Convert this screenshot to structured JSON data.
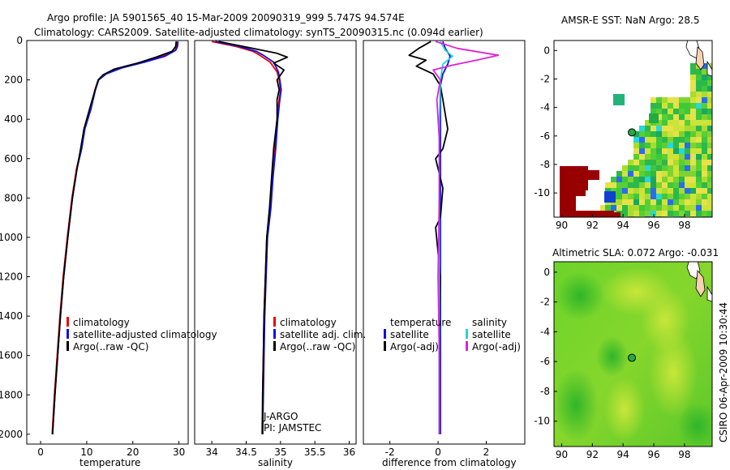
{
  "titles": {
    "line1": "Argo profile: JA 5901565_40 15-Mar-2009 20090319_999 5.747S 94.574E",
    "line2": "Climatology: CARS2009. Satellite-adjusted climatology: synTS_20090315.nc (0.094d earlier)"
  },
  "credit": "CSIRO 06-Apr-2009 10:30:44",
  "colors": {
    "climatology": "#ee0000",
    "satellite": "#1010e6",
    "argo": "#000000",
    "sat_salinity": "#22d5d5",
    "argo_salinity": "#dd22dd",
    "land": "#f6d2b2",
    "mask": "#980000",
    "float_marker": "#22aa44"
  },
  "chart_data": [
    {
      "type": "line",
      "name": "temperature",
      "xlabel": "temperature",
      "ylabel": "",
      "xlim": [
        -3,
        32
      ],
      "ylim": [
        2050,
        0
      ],
      "xticks": [
        0,
        10,
        20,
        30
      ],
      "yticks": [
        0,
        200,
        400,
        600,
        800,
        1000,
        1200,
        1400,
        1600,
        1800,
        2000
      ],
      "legend": [
        "climatology",
        "satellite-adjusted climatology",
        "Argo(..raw -QC)"
      ],
      "series": [
        {
          "name": "climatology",
          "color": "#ee0000",
          "points": [
            [
              29.6,
              5
            ],
            [
              29.5,
              30
            ],
            [
              29.2,
              50
            ],
            [
              26.5,
              80
            ],
            [
              22,
              110
            ],
            [
              17,
              140
            ],
            [
              14,
              170
            ],
            [
              12.5,
              200
            ],
            [
              11.8,
              250
            ],
            [
              10.8,
              350
            ],
            [
              9.5,
              450
            ],
            [
              8.8,
              550
            ],
            [
              7.8,
              650
            ],
            [
              6.8,
              800
            ],
            [
              5.8,
              1000
            ],
            [
              4.9,
              1200
            ],
            [
              4.2,
              1400
            ],
            [
              3.6,
              1600
            ],
            [
              3,
              1800
            ],
            [
              2.5,
              2000
            ]
          ]
        },
        {
          "name": "satellite",
          "color": "#1010e6",
          "points": [
            [
              29.8,
              5
            ],
            [
              29.7,
              30
            ],
            [
              29.3,
              50
            ],
            [
              27,
              80
            ],
            [
              22.5,
              110
            ],
            [
              17.5,
              140
            ],
            [
              14.2,
              170
            ],
            [
              12.6,
              200
            ],
            [
              11.9,
              250
            ],
            [
              10.9,
              350
            ],
            [
              9.6,
              450
            ],
            [
              8.9,
              550
            ],
            [
              7.9,
              650
            ],
            [
              6.9,
              800
            ],
            [
              5.9,
              1000
            ],
            [
              5,
              1200
            ],
            [
              4.3,
              1400
            ],
            [
              3.7,
              1600
            ],
            [
              3.1,
              1800
            ],
            [
              2.6,
              2000
            ]
          ]
        },
        {
          "name": "Argo(..raw -QC)",
          "color": "#000000",
          "points": [
            [
              29.4,
              5
            ],
            [
              29.3,
              30
            ],
            [
              28.5,
              55
            ],
            [
              25,
              85
            ],
            [
              21,
              115
            ],
            [
              16,
              145
            ],
            [
              13.5,
              175
            ],
            [
              12.5,
              200
            ],
            [
              11.7,
              260
            ],
            [
              10.6,
              350
            ],
            [
              9.4,
              450
            ],
            [
              8.6,
              560
            ],
            [
              7.9,
              650
            ],
            [
              6.9,
              800
            ],
            [
              5.9,
              1000
            ],
            [
              5,
              1200
            ],
            [
              4.3,
              1400
            ],
            [
              3.7,
              1600
            ],
            [
              3.1,
              1800
            ],
            [
              2.6,
              2000
            ]
          ]
        }
      ]
    },
    {
      "type": "line",
      "name": "salinity",
      "xlabel": "salinity",
      "xlim": [
        33.75,
        36.1
      ],
      "ylim": [
        2050,
        0
      ],
      "xticks": [
        34,
        34.5,
        35,
        35.5,
        36
      ],
      "legend": [
        "climatology",
        "satellite adj. clim.",
        "Argo(..raw -QC)"
      ],
      "annotation": [
        "J-ARGO",
        "PI: JAMSTEC"
      ],
      "series": [
        {
          "name": "climatology",
          "color": "#ee0000",
          "points": [
            [
              34.0,
              5
            ],
            [
              34.35,
              30
            ],
            [
              34.6,
              55
            ],
            [
              34.7,
              75
            ],
            [
              34.85,
              110
            ],
            [
              34.95,
              160
            ],
            [
              34.98,
              200
            ],
            [
              35.0,
              250
            ],
            [
              34.98,
              300
            ],
            [
              34.95,
              400
            ],
            [
              34.92,
              550
            ],
            [
              34.88,
              700
            ],
            [
              34.85,
              850
            ],
            [
              34.8,
              1000
            ],
            [
              34.78,
              1200
            ],
            [
              34.76,
              1400
            ],
            [
              34.75,
              1600
            ],
            [
              34.74,
              1800
            ],
            [
              34.73,
              2000
            ]
          ]
        },
        {
          "name": "satellite",
          "color": "#1010e6",
          "points": [
            [
              34.05,
              5
            ],
            [
              34.4,
              30
            ],
            [
              34.65,
              55
            ],
            [
              34.75,
              75
            ],
            [
              34.9,
              110
            ],
            [
              34.97,
              160
            ],
            [
              34.99,
              200
            ],
            [
              35.01,
              250
            ],
            [
              34.99,
              300
            ],
            [
              34.96,
              400
            ],
            [
              34.93,
              550
            ],
            [
              34.89,
              700
            ],
            [
              34.86,
              850
            ],
            [
              34.81,
              1000
            ],
            [
              34.79,
              1200
            ],
            [
              34.77,
              1400
            ],
            [
              34.76,
              1600
            ],
            [
              34.75,
              1800
            ],
            [
              34.74,
              2000
            ]
          ]
        },
        {
          "name": "Argo(..raw -QC)",
          "color": "#000000",
          "points": [
            [
              34.1,
              5
            ],
            [
              34.6,
              40
            ],
            [
              34.95,
              65
            ],
            [
              35.1,
              85
            ],
            [
              34.9,
              115
            ],
            [
              35.05,
              150
            ],
            [
              34.95,
              200
            ],
            [
              34.98,
              250
            ],
            [
              34.95,
              300
            ],
            [
              34.95,
              400
            ],
            [
              34.9,
              550
            ],
            [
              34.87,
              700
            ],
            [
              34.84,
              850
            ],
            [
              34.8,
              1000
            ],
            [
              34.78,
              1200
            ],
            [
              34.76,
              1400
            ],
            [
              34.75,
              1600
            ],
            [
              34.74,
              1800
            ],
            [
              34.74,
              2000
            ]
          ]
        }
      ]
    },
    {
      "type": "line",
      "name": "difference",
      "xlabel": "difference from climatology",
      "xlim": [
        -3.1,
        3.6
      ],
      "ylim": [
        2050,
        0
      ],
      "xticks": [
        -2,
        0,
        2
      ],
      "legend": [
        "temperature",
        "satellite",
        "Argo(-adj)",
        "salinity",
        "satellite",
        "Argo(-adj)"
      ],
      "series": [
        {
          "name": "temperature satellite",
          "color": "#1010e6",
          "points": [
            [
              0.2,
              5
            ],
            [
              0.3,
              40
            ],
            [
              0.5,
              80
            ],
            [
              0.4,
              120
            ],
            [
              0.2,
              170
            ],
            [
              0.1,
              230
            ],
            [
              0.1,
              300
            ],
            [
              0.1,
              500
            ],
            [
              0.1,
              800
            ],
            [
              0.1,
              1200
            ],
            [
              0.1,
              1600
            ],
            [
              0.1,
              2000
            ]
          ]
        },
        {
          "name": "temperature Argo(-adj)",
          "color": "#000000",
          "points": [
            [
              -0.3,
              5
            ],
            [
              -0.8,
              40
            ],
            [
              -1.2,
              75
            ],
            [
              -0.5,
              100
            ],
            [
              -0.9,
              130
            ],
            [
              -0.2,
              170
            ],
            [
              0.1,
              230
            ],
            [
              0.2,
              300
            ],
            [
              0.4,
              450
            ],
            [
              0.2,
              550
            ],
            [
              -0.1,
              600
            ],
            [
              0.2,
              750
            ],
            [
              0.1,
              900
            ],
            [
              -0.1,
              950
            ],
            [
              0.1,
              1200
            ],
            [
              0.05,
              1600
            ],
            [
              0.05,
              2000
            ]
          ]
        },
        {
          "name": "salinity satellite",
          "color": "#22d5d5",
          "points": [
            [
              0.1,
              5
            ],
            [
              0.3,
              50
            ],
            [
              0.6,
              80
            ],
            [
              0.2,
              120
            ],
            [
              0.1,
              200
            ],
            [
              0.05,
              400
            ],
            [
              0.05,
              800
            ],
            [
              0.05,
              1200
            ],
            [
              0.05,
              1600
            ],
            [
              0.05,
              2000
            ]
          ]
        },
        {
          "name": "salinity Argo(-adj)",
          "color": "#dd22dd",
          "points": [
            [
              -0.1,
              5
            ],
            [
              0.8,
              40
            ],
            [
              2.5,
              75
            ],
            [
              1.6,
              100
            ],
            [
              0.6,
              125
            ],
            [
              -0.2,
              150
            ],
            [
              0.1,
              200
            ],
            [
              -0.05,
              300
            ],
            [
              0.05,
              500
            ],
            [
              0.05,
              800
            ],
            [
              0.0,
              1200
            ],
            [
              0.05,
              1600
            ],
            [
              0.05,
              2000
            ]
          ]
        }
      ]
    },
    {
      "type": "heatmap",
      "name": "sst-map",
      "title": "AMSR-E SST: NaN Argo: 28.5",
      "xlim": [
        89.5,
        99.8
      ],
      "ylim": [
        -11.7,
        0.7
      ],
      "xticks": [
        90,
        92,
        94,
        96,
        98
      ],
      "yticks": [
        0,
        -2,
        -4,
        -6,
        -8,
        -10
      ],
      "float": {
        "lon": 94.574,
        "lat": -5.747
      }
    },
    {
      "type": "heatmap",
      "name": "sla-map",
      "title": "Altimetric SLA: 0.072 Argo: -0.031",
      "xlim": [
        89.5,
        99.8
      ],
      "ylim": [
        -11.7,
        0.7
      ],
      "xticks": [
        90,
        92,
        94,
        96,
        98
      ],
      "yticks": [
        0,
        -2,
        -4,
        -6,
        -8,
        -10
      ],
      "float": {
        "lon": 94.574,
        "lat": -5.747
      }
    }
  ]
}
